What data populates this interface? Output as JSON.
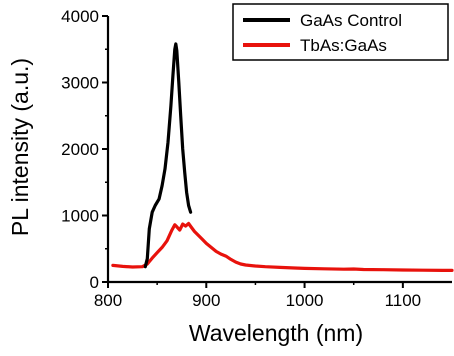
{
  "chart_data": {
    "type": "line",
    "xlabel": "Wavelength (nm)",
    "ylabel": "PL intensity (a.u.)",
    "xlim": [
      800,
      1150
    ],
    "ylim": [
      0,
      4000
    ],
    "x_ticks": [
      800,
      900,
      1000,
      1100
    ],
    "y_ticks": [
      0,
      1000,
      2000,
      3000,
      4000
    ],
    "grid": false,
    "legend_position": "top-right",
    "series": [
      {
        "name": "GaAs Control",
        "color": "#000000",
        "points": [
          [
            838,
            230
          ],
          [
            840,
            350
          ],
          [
            842,
            800
          ],
          [
            845,
            1050
          ],
          [
            848,
            1150
          ],
          [
            852,
            1250
          ],
          [
            855,
            1450
          ],
          [
            858,
            1700
          ],
          [
            861,
            2100
          ],
          [
            864,
            2650
          ],
          [
            866,
            3100
          ],
          [
            868,
            3500
          ],
          [
            869,
            3580
          ],
          [
            870,
            3480
          ],
          [
            872,
            3000
          ],
          [
            874,
            2500
          ],
          [
            876,
            2000
          ],
          [
            878,
            1650
          ],
          [
            880,
            1350
          ],
          [
            882,
            1150
          ],
          [
            884,
            1050
          ]
        ]
      },
      {
        "name": "TbAs:GaAs",
        "color": "#e8120c",
        "points": [
          [
            805,
            250
          ],
          [
            815,
            235
          ],
          [
            825,
            225
          ],
          [
            835,
            230
          ],
          [
            840,
            270
          ],
          [
            845,
            360
          ],
          [
            850,
            440
          ],
          [
            855,
            520
          ],
          [
            860,
            620
          ],
          [
            865,
            780
          ],
          [
            868,
            860
          ],
          [
            870,
            830
          ],
          [
            873,
            780
          ],
          [
            876,
            870
          ],
          [
            879,
            840
          ],
          [
            882,
            880
          ],
          [
            885,
            820
          ],
          [
            888,
            760
          ],
          [
            892,
            700
          ],
          [
            896,
            640
          ],
          [
            900,
            580
          ],
          [
            905,
            520
          ],
          [
            910,
            460
          ],
          [
            915,
            420
          ],
          [
            920,
            390
          ],
          [
            925,
            340
          ],
          [
            930,
            300
          ],
          [
            935,
            270
          ],
          [
            940,
            255
          ],
          [
            950,
            240
          ],
          [
            960,
            230
          ],
          [
            975,
            220
          ],
          [
            990,
            210
          ],
          [
            1000,
            205
          ],
          [
            1020,
            198
          ],
          [
            1040,
            192
          ],
          [
            1050,
            195
          ],
          [
            1060,
            188
          ],
          [
            1080,
            185
          ],
          [
            1100,
            180
          ],
          [
            1120,
            178
          ],
          [
            1140,
            175
          ],
          [
            1150,
            175
          ]
        ]
      }
    ]
  }
}
